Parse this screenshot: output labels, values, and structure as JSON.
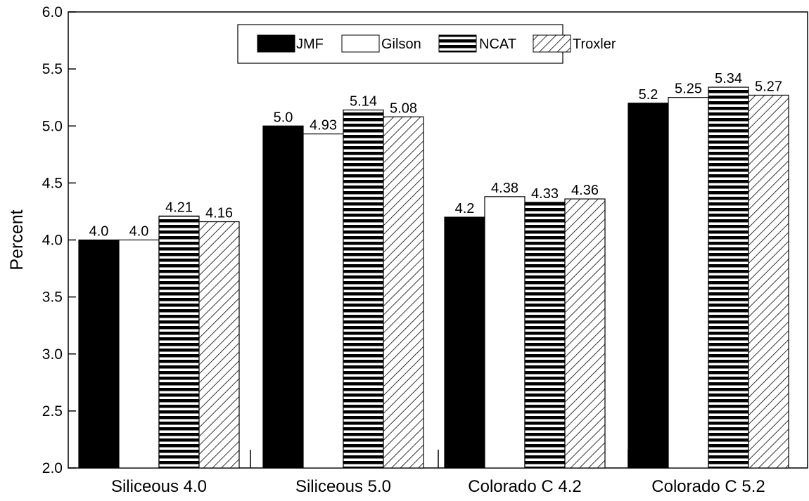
{
  "chart_data": {
    "type": "bar",
    "title": "",
    "xlabel": "",
    "ylabel": "Percent",
    "ylim": [
      2.0,
      6.0
    ],
    "yticks": [
      "2.0",
      "2.5",
      "3.0",
      "3.5",
      "4.0",
      "4.5",
      "5.0",
      "5.5",
      "6.0"
    ],
    "categories": [
      "Siliceous 4.0",
      "Siliceous 5.0",
      "Colorado C 4.2",
      "Colorado C 5.2"
    ],
    "series": [
      {
        "name": "JMF",
        "pattern": "solid",
        "values": [
          4.0,
          5.0,
          4.2,
          5.2
        ],
        "labels": [
          "4.0",
          "5.0",
          "4.2",
          "5.2"
        ]
      },
      {
        "name": "Gilson",
        "pattern": "white",
        "values": [
          4.0,
          4.93,
          4.38,
          5.25
        ],
        "labels": [
          "4.0",
          "4.93",
          "4.38",
          "5.25"
        ]
      },
      {
        "name": "NCAT",
        "pattern": "horizontal-stripes",
        "values": [
          4.21,
          5.14,
          4.33,
          5.34
        ],
        "labels": [
          "4.21",
          "5.14",
          "4.33",
          "5.34"
        ]
      },
      {
        "name": "Troxler",
        "pattern": "diagonal-hatch",
        "values": [
          4.16,
          5.08,
          4.36,
          5.27
        ],
        "labels": [
          "4.16",
          "5.08",
          "4.36",
          "5.27"
        ]
      }
    ],
    "legend": {
      "position": "top-center"
    },
    "grid": false,
    "colors": {
      "bar_fill": "#000000",
      "bar_outline": "#000000",
      "background": "#ffffff"
    }
  }
}
